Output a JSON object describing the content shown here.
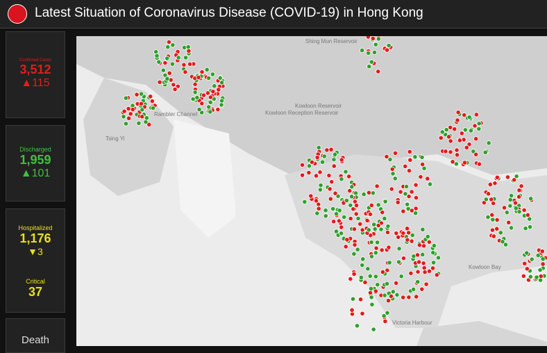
{
  "header": {
    "title": "Latest Situation of Coronavirus Disease (COVID-19) in Hong Kong"
  },
  "panels": [
    {
      "label": "Confirmed Cases",
      "value": "3,512",
      "change": "▲115"
    },
    {
      "label": "Discharged",
      "value": "1,959",
      "change": "▲101"
    },
    {
      "label": "Hospitalized",
      "value": "1,176",
      "change": "▼3",
      "sub_label": "Critical",
      "sub_value": "37"
    },
    {
      "label": "Death"
    }
  ],
  "map": {
    "labels": [
      "Shing Mun Reservoir",
      "Kowloon Reservoir",
      "Kowloon Reception Reservoir",
      "Rambler Channel",
      "Tsing Yi",
      "Kowloon Bay",
      "Victoria Harbour"
    ]
  }
}
